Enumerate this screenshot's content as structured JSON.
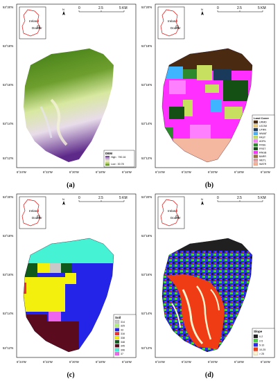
{
  "inset": {
    "country": "Ireland",
    "site": "Dodder"
  },
  "north_arrow": "N",
  "scale_bar": {
    "labels": [
      "0",
      "2.5",
      "5 KM"
    ]
  },
  "lat_labels": [
    "53°20'N",
    "53°18'N",
    "53°16'N",
    "53°14'N",
    "53°12'N"
  ],
  "lon_labels": [
    "6°24'W",
    "6°22'W",
    "6°20'W",
    "6°18'W",
    "6°16'W"
  ],
  "panels": [
    {
      "caption": "(a)",
      "legend": {
        "title": "DEM",
        "high": "High : 790.16",
        "low": "Low : 30.78",
        "colors": [
          "#6a2c91",
          "#c9b4d6",
          "#f2f2c2",
          "#a8c75a",
          "#3f7b14"
        ]
      }
    },
    {
      "caption": "(b)",
      "legend": {
        "title": "Land Cover",
        "items": [
          {
            "label": "URMD",
            "color": "#4a2a10"
          },
          {
            "label": "UCOM",
            "color": "#f0d080"
          },
          {
            "label": "UTRN",
            "color": "#1a3a5c"
          },
          {
            "label": "WWAT",
            "color": "#3fb5ff"
          },
          {
            "label": "PAST",
            "color": "#c8e060"
          },
          {
            "label": "AGRL",
            "color": "#ff80ff"
          },
          {
            "label": "FRSE",
            "color": "#2c8a2c"
          },
          {
            "label": "FRST",
            "color": "#145014"
          },
          {
            "label": "RNGB",
            "color": "#ff30ff"
          },
          {
            "label": "BARR",
            "color": "#9a7040"
          },
          {
            "label": "WETL",
            "color": "#e0a0a0"
          },
          {
            "label": "WATR",
            "color": "#ffb090"
          }
        ]
      }
    },
    {
      "caption": "(c)",
      "legend": {
        "title": "Soil",
        "items": [
          {
            "label": "314",
            "color": "#c8c8c8"
          },
          {
            "label": "325",
            "color": "#aef27a"
          },
          {
            "label": "33",
            "color": "#2424e8"
          },
          {
            "label": "316",
            "color": "#ee3030"
          },
          {
            "label": "338",
            "color": "#f2f00c"
          },
          {
            "label": "348",
            "color": "#0f5a1a"
          },
          {
            "label": "345",
            "color": "#5a0c1e"
          },
          {
            "label": "396",
            "color": "#46f2d4"
          },
          {
            "label": "37",
            "color": "#ee66ee"
          }
        ]
      }
    },
    {
      "caption": "(d)",
      "legend": {
        "title": "Slope",
        "items": [
          {
            "label": "0-2",
            "color": "#202020"
          },
          {
            "label": "2-5",
            "color": "#46d246"
          },
          {
            "label": "5-10",
            "color": "#2a2af0"
          },
          {
            "label": "10-25",
            "color": "#f03c14"
          },
          {
            "label": "> 25",
            "color": "#fff4d0"
          }
        ]
      }
    }
  ]
}
